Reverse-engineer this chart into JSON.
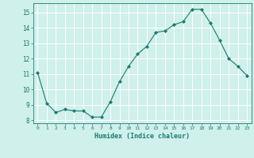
{
  "x": [
    0,
    1,
    2,
    3,
    4,
    5,
    6,
    7,
    8,
    9,
    10,
    11,
    12,
    13,
    14,
    15,
    16,
    17,
    18,
    19,
    20,
    21,
    22,
    23
  ],
  "y": [
    11.1,
    9.1,
    8.5,
    8.7,
    8.6,
    8.6,
    8.2,
    8.2,
    9.2,
    10.5,
    11.5,
    12.3,
    12.8,
    13.7,
    13.8,
    14.2,
    14.4,
    15.2,
    15.2,
    14.3,
    13.2,
    12.0,
    11.5,
    10.9
  ],
  "xlabel": "Humidex (Indice chaleur)",
  "ylim": [
    7.8,
    15.6
  ],
  "yticks": [
    8,
    9,
    10,
    11,
    12,
    13,
    14,
    15
  ],
  "xticks": [
    0,
    1,
    2,
    3,
    4,
    5,
    6,
    7,
    8,
    9,
    10,
    11,
    12,
    13,
    14,
    15,
    16,
    17,
    18,
    19,
    20,
    21,
    22,
    23
  ],
  "line_color": "#1a7a6e",
  "marker_color": "#1a7a6e",
  "bg_color": "#cff0eb",
  "grid_color": "#ffffff",
  "axis_color": "#1a7a6e",
  "tick_color": "#1a7a6e",
  "label_color": "#1a7a6e"
}
